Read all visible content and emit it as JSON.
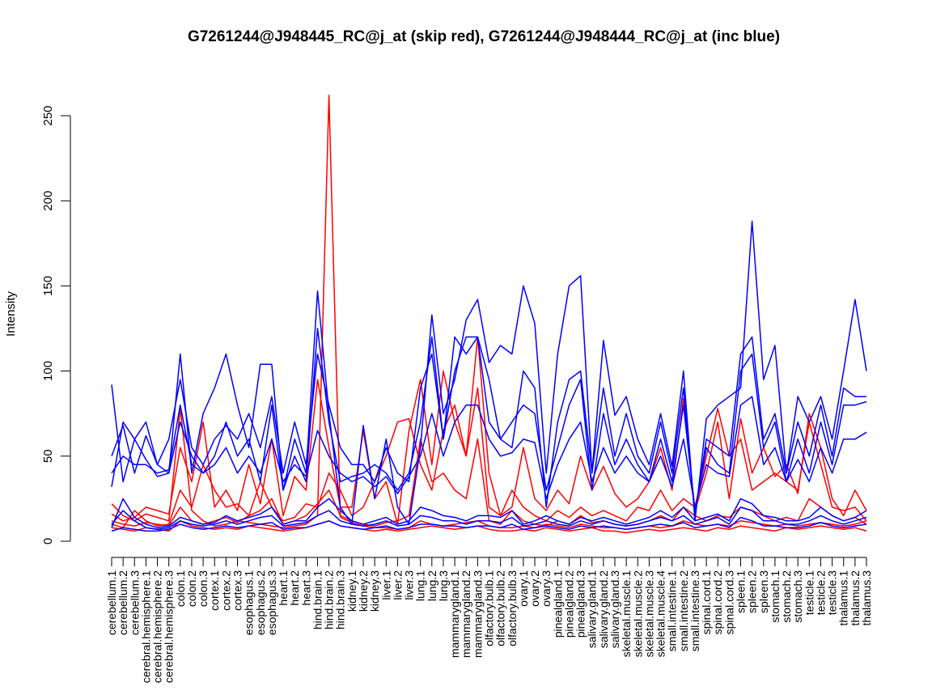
{
  "chart_data": {
    "type": "line",
    "title": "G7261244@J948445_RC@j_at (skip red), G7261244@J948444_RC@j_at (inc blue)",
    "xlabel": "",
    "ylabel": "Intensity",
    "ylim": [
      0,
      260
    ],
    "yticks": [
      0,
      50,
      100,
      150,
      200,
      250
    ],
    "grid": false,
    "legend": "none",
    "categories": [
      "cerebellum.1",
      "cerebellum.2",
      "cerebellum.3",
      "cerebral.hemisphere.1",
      "cerebral.hemisphere.2",
      "cerebral.hemisphere.3",
      "colon.1",
      "colon.2",
      "colon.3",
      "cortex.1",
      "cortex.2",
      "cortex.3",
      "esophagus.1",
      "esophagus.2",
      "esophagus.3",
      "heart.1",
      "heart.2",
      "heart.3",
      "hind.brain.1",
      "hind.brain.2",
      "hind.brain.3",
      "kidney.1",
      "kidney.2",
      "kidney.3",
      "liver.1",
      "liver.2",
      "liver.3",
      "lung.1",
      "lung.2",
      "lung.3",
      "mammarygland.1",
      "mammarygland.2",
      "mammarygland.3",
      "olfactory.bulb.1",
      "olfactory.bulb.2",
      "olfactory.bulb.3",
      "ovary.1",
      "ovary.2",
      "ovary.3",
      "pinealgland.1",
      "pinealgland.2",
      "pinealgland.3",
      "salivary.gland.1",
      "salivary.gland.2",
      "salivary.gland.3",
      "skeletal.muscle.1",
      "skeletal.muscle.2",
      "skeletal.muscle.3",
      "skeletal.muscle.4",
      "small.intestine.1",
      "small.intestine.2",
      "small.intestine.3",
      "spinal.cord.1",
      "spinal.cord.2",
      "spinal.cord.3",
      "spleen.1",
      "spleen.2",
      "spleen.3",
      "stomach.1",
      "stomach.2",
      "stomach.3",
      "testicle.1",
      "testicle.2",
      "testicle.3",
      "thalamus.1",
      "thalamus.2",
      "thalamus.3"
    ],
    "series": [
      {
        "color": "#ff0000",
        "values": [
          22,
          15,
          12,
          16,
          14,
          12,
          78,
          18,
          12,
          9,
          10,
          12,
          11,
          10,
          9,
          8,
          9,
          10,
          15,
          262,
          14,
          11,
          9,
          8,
          8,
          7,
          8,
          12,
          10,
          9,
          10,
          11,
          12,
          9,
          8,
          8,
          9,
          8,
          10,
          9,
          8,
          10,
          9,
          8,
          8,
          7,
          8,
          9,
          8,
          9,
          12,
          10,
          9,
          10,
          9,
          12,
          11,
          10,
          9,
          10,
          9,
          10,
          11,
          10,
          9,
          10,
          12
        ]
      },
      {
        "color": "#ff0000",
        "values": [
          16,
          12,
          14,
          20,
          18,
          16,
          55,
          35,
          70,
          20,
          30,
          18,
          45,
          22,
          60,
          15,
          38,
          30,
          95,
          55,
          20,
          20,
          65,
          25,
          35,
          10,
          65,
          95,
          45,
          100,
          70,
          50,
          120,
          40,
          15,
          20,
          55,
          25,
          18,
          30,
          22,
          50,
          30,
          44,
          28,
          20,
          25,
          35,
          55,
          30,
          84,
          18,
          40,
          70,
          25,
          72,
          40,
          55,
          38,
          45,
          28,
          75,
          55,
          25,
          15,
          30,
          18
        ]
      },
      {
        "color": "#ff0000",
        "values": [
          10,
          8,
          18,
          12,
          9,
          10,
          30,
          20,
          45,
          30,
          20,
          22,
          15,
          35,
          20,
          12,
          14,
          22,
          20,
          40,
          30,
          15,
          20,
          35,
          50,
          70,
          72,
          45,
          30,
          65,
          80,
          50,
          90,
          20,
          15,
          30,
          20,
          15,
          12,
          18,
          14,
          20,
          15,
          18,
          15,
          12,
          20,
          18,
          30,
          18,
          25,
          20,
          50,
          78,
          50,
          60,
          30,
          35,
          40,
          35,
          30,
          70,
          45,
          20,
          18,
          20,
          12
        ]
      },
      {
        "color": "#ff0000",
        "values": [
          12,
          10,
          9,
          11,
          10,
          9,
          20,
          12,
          10,
          12,
          14,
          11,
          15,
          18,
          25,
          10,
          12,
          15,
          22,
          30,
          15,
          12,
          10,
          9,
          11,
          12,
          15,
          60,
          35,
          40,
          30,
          25,
          60,
          12,
          10,
          18,
          12,
          10,
          9,
          12,
          10,
          15,
          11,
          12,
          10,
          9,
          10,
          12,
          15,
          12,
          20,
          15,
          12,
          15,
          14,
          20,
          18,
          15,
          12,
          14,
          12,
          25,
          20,
          15,
          12,
          14,
          10
        ]
      },
      {
        "color": "#ff0000",
        "values": [
          8,
          7,
          6,
          8,
          7,
          6,
          12,
          9,
          8,
          7,
          8,
          7,
          9,
          8,
          7,
          6,
          7,
          8,
          10,
          12,
          9,
          8,
          7,
          6,
          7,
          6,
          7,
          8,
          9,
          8,
          7,
          8,
          9,
          7,
          6,
          6,
          7,
          6,
          8,
          7,
          6,
          7,
          8,
          6,
          6,
          5,
          6,
          7,
          6,
          7,
          8,
          7,
          6,
          8,
          7,
          9,
          8,
          7,
          6,
          8,
          7,
          8,
          9,
          8,
          7,
          8,
          6
        ]
      },
      {
        "color": "#0000ff",
        "values": [
          92,
          35,
          60,
          70,
          45,
          40,
          110,
          40,
          75,
          90,
          110,
          80,
          55,
          104,
          104,
          30,
          60,
          40,
          147,
          75,
          20,
          10,
          68,
          25,
          60,
          20,
          10,
          55,
          133,
          75,
          95,
          130,
          142,
          105,
          115,
          110,
          150,
          128,
          40,
          110,
          150,
          156,
          40,
          118,
          74,
          85,
          60,
          45,
          75,
          44,
          100,
          12,
          72,
          80,
          85,
          90,
          188,
          95,
          115,
          40,
          85,
          70,
          85,
          60,
          100,
          142,
          100
        ]
      },
      {
        "color": "#0000ff",
        "values": [
          50,
          68,
          40,
          62,
          45,
          60,
          95,
          55,
          45,
          60,
          68,
          60,
          75,
          55,
          85,
          40,
          70,
          45,
          110,
          80,
          55,
          45,
          45,
          35,
          55,
          40,
          35,
          90,
          110,
          60,
          120,
          110,
          120,
          95,
          60,
          55,
          100,
          90,
          20,
          70,
          95,
          100,
          40,
          90,
          50,
          75,
          50,
          40,
          70,
          40,
          90,
          15,
          60,
          55,
          50,
          110,
          120,
          60,
          75,
          40,
          70,
          50,
          80,
          50,
          90,
          85,
          85
        ]
      },
      {
        "color": "#0000ff",
        "values": [
          32,
          70,
          60,
          48,
          38,
          40,
          70,
          50,
          40,
          50,
          70,
          50,
          60,
          35,
          80,
          30,
          50,
          35,
          125,
          70,
          35,
          38,
          40,
          45,
          40,
          30,
          40,
          70,
          120,
          60,
          100,
          120,
          120,
          70,
          60,
          70,
          80,
          75,
          30,
          55,
          80,
          95,
          30,
          75,
          45,
          60,
          45,
          35,
          60,
          35,
          80,
          18,
          55,
          45,
          40,
          100,
          110,
          55,
          70,
          35,
          60,
          40,
          70,
          45,
          80,
          80,
          82
        ]
      },
      {
        "color": "#0000ff",
        "values": [
          40,
          50,
          45,
          45,
          40,
          42,
          80,
          45,
          40,
          45,
          55,
          40,
          50,
          40,
          60,
          35,
          45,
          38,
          65,
          50,
          40,
          35,
          38,
          32,
          38,
          28,
          38,
          50,
          75,
          50,
          70,
          80,
          80,
          60,
          50,
          52,
          60,
          58,
          25,
          45,
          60,
          70,
          35,
          55,
          40,
          50,
          40,
          35,
          50,
          32,
          60,
          20,
          45,
          40,
          38,
          80,
          85,
          45,
          55,
          35,
          48,
          35,
          55,
          40,
          60,
          60,
          64
        ]
      },
      {
        "color": "#0000ff",
        "values": [
          8,
          25,
          14,
          10,
          8,
          9,
          14,
          12,
          10,
          11,
          15,
          12,
          14,
          16,
          20,
          10,
          12,
          12,
          20,
          25,
          18,
          12,
          10,
          12,
          14,
          10,
          12,
          20,
          18,
          15,
          14,
          12,
          15,
          15,
          14,
          18,
          10,
          12,
          15,
          12,
          10,
          14,
          12,
          14,
          12,
          10,
          12,
          14,
          18,
          14,
          20,
          12,
          14,
          16,
          12,
          25,
          22,
          15,
          14,
          12,
          12,
          14,
          20,
          15,
          12,
          14,
          18
        ]
      },
      {
        "color": "#0000ff",
        "values": [
          10,
          18,
          12,
          8,
          7,
          8,
          12,
          10,
          9,
          10,
          12,
          10,
          12,
          14,
          15,
          9,
          10,
          11,
          15,
          18,
          12,
          10,
          9,
          10,
          12,
          9,
          10,
          15,
          14,
          12,
          12,
          10,
          12,
          12,
          11,
          14,
          9,
          10,
          12,
          10,
          9,
          12,
          10,
          12,
          10,
          9,
          10,
          12,
          14,
          12,
          15,
          10,
          12,
          14,
          10,
          20,
          18,
          12,
          12,
          10,
          10,
          12,
          15,
          12,
          10,
          12,
          14
        ]
      },
      {
        "color": "#0000ff",
        "values": [
          6,
          8,
          7,
          6,
          6,
          7,
          10,
          8,
          7,
          8,
          9,
          8,
          9,
          10,
          11,
          7,
          8,
          8,
          10,
          12,
          9,
          8,
          7,
          8,
          9,
          7,
          8,
          10,
          10,
          9,
          9,
          8,
          9,
          9,
          8,
          10,
          7,
          8,
          9,
          8,
          7,
          9,
          8,
          9,
          8,
          7,
          8,
          9,
          10,
          9,
          11,
          8,
          9,
          10,
          8,
          14,
          12,
          9,
          9,
          8,
          8,
          9,
          11,
          9,
          8,
          9,
          10
        ]
      }
    ]
  }
}
